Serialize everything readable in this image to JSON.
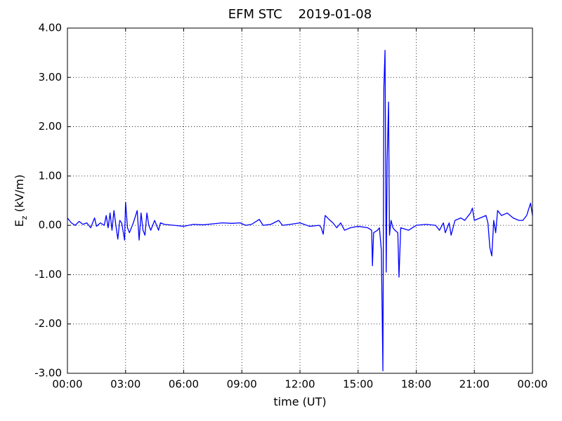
{
  "chart_data": {
    "type": "line",
    "title": "EFM STC    2019-01-08",
    "xlabel": "time (UT)",
    "ylabel": {
      "base": "E",
      "sub": "z",
      "unit": " (kV/m)"
    },
    "color": "#0000ff",
    "grid": true,
    "xlim": [
      0,
      24
    ],
    "ylim": [
      -3,
      4
    ],
    "xticks": [
      {
        "value": 0,
        "label": "00:00"
      },
      {
        "value": 3,
        "label": "03:00"
      },
      {
        "value": 6,
        "label": "06:00"
      },
      {
        "value": 9,
        "label": "09:00"
      },
      {
        "value": 12,
        "label": "12:00"
      },
      {
        "value": 15,
        "label": "15:00"
      },
      {
        "value": 18,
        "label": "18:00"
      },
      {
        "value": 21,
        "label": "21:00"
      },
      {
        "value": 24,
        "label": "00:00"
      }
    ],
    "yticks": [
      {
        "value": -3,
        "label": "-3.00"
      },
      {
        "value": -2,
        "label": "-2.00"
      },
      {
        "value": -1,
        "label": "-1.00"
      },
      {
        "value": 0,
        "label": "0.00"
      },
      {
        "value": 1,
        "label": "1.00"
      },
      {
        "value": 2,
        "label": "2.00"
      },
      {
        "value": 3,
        "label": "3.00"
      },
      {
        "value": 4,
        "label": "4.00"
      }
    ],
    "x": [
      0.0,
      0.2,
      0.4,
      0.6,
      0.8,
      1.0,
      1.2,
      1.4,
      1.5,
      1.7,
      1.9,
      2.0,
      2.1,
      2.2,
      2.3,
      2.4,
      2.5,
      2.6,
      2.7,
      2.8,
      2.95,
      3.0,
      3.1,
      3.2,
      3.4,
      3.6,
      3.7,
      3.8,
      3.9,
      4.0,
      4.1,
      4.2,
      4.3,
      4.5,
      4.7,
      4.8,
      5.0,
      5.5,
      6.0,
      6.5,
      7.0,
      7.5,
      8.0,
      8.5,
      8.9,
      9.2,
      9.5,
      9.9,
      10.1,
      10.5,
      10.9,
      11.1,
      11.5,
      12.0,
      12.5,
      13.0,
      13.1,
      13.2,
      13.3,
      13.5,
      13.7,
      13.9,
      14.1,
      14.3,
      14.6,
      15.0,
      15.5,
      15.7,
      15.74,
      15.8,
      16.0,
      16.1,
      16.2,
      16.28,
      16.33,
      16.39,
      16.45,
      16.5,
      16.57,
      16.62,
      16.7,
      16.8,
      16.9,
      17.05,
      17.11,
      17.2,
      17.6,
      18.0,
      18.5,
      19.0,
      19.2,
      19.4,
      19.5,
      19.7,
      19.8,
      20.0,
      20.3,
      20.5,
      20.8,
      20.9,
      21.0,
      21.3,
      21.6,
      21.7,
      21.8,
      21.9,
      22.0,
      22.1,
      22.2,
      22.4,
      22.7,
      23.0,
      23.3,
      23.5,
      23.7,
      23.9,
      24.0
    ],
    "values": [
      0.15,
      0.05,
      0.0,
      0.08,
      0.02,
      0.05,
      -0.05,
      0.15,
      -0.02,
      0.05,
      0.0,
      0.2,
      -0.05,
      0.25,
      -0.1,
      0.3,
      0.0,
      -0.28,
      0.1,
      0.05,
      -0.3,
      0.47,
      -0.05,
      -0.15,
      0.05,
      0.3,
      -0.3,
      0.25,
      -0.1,
      -0.2,
      0.25,
      0.0,
      -0.1,
      0.1,
      -0.1,
      0.05,
      0.02,
      0.0,
      -0.02,
      0.02,
      0.01,
      0.03,
      0.05,
      0.04,
      0.05,
      0.0,
      0.02,
      0.12,
      0.0,
      0.02,
      0.1,
      0.0,
      0.02,
      0.05,
      -0.02,
      0.0,
      -0.05,
      -0.18,
      0.2,
      0.12,
      0.05,
      -0.05,
      0.05,
      -0.1,
      -0.05,
      -0.02,
      -0.05,
      -0.1,
      -0.82,
      -0.15,
      -0.1,
      -0.05,
      -0.5,
      -2.95,
      2.8,
      3.55,
      -0.95,
      1.3,
      2.5,
      -0.2,
      0.1,
      -0.05,
      -0.1,
      -0.15,
      -1.05,
      -0.05,
      -0.1,
      0.0,
      0.02,
      0.0,
      -0.1,
      0.05,
      -0.15,
      0.05,
      -0.2,
      0.1,
      0.15,
      0.1,
      0.25,
      0.35,
      0.1,
      0.15,
      0.2,
      0.05,
      -0.45,
      -0.62,
      0.1,
      -0.15,
      0.3,
      0.2,
      0.25,
      0.15,
      0.1,
      0.1,
      0.2,
      0.45,
      0.2
    ]
  }
}
